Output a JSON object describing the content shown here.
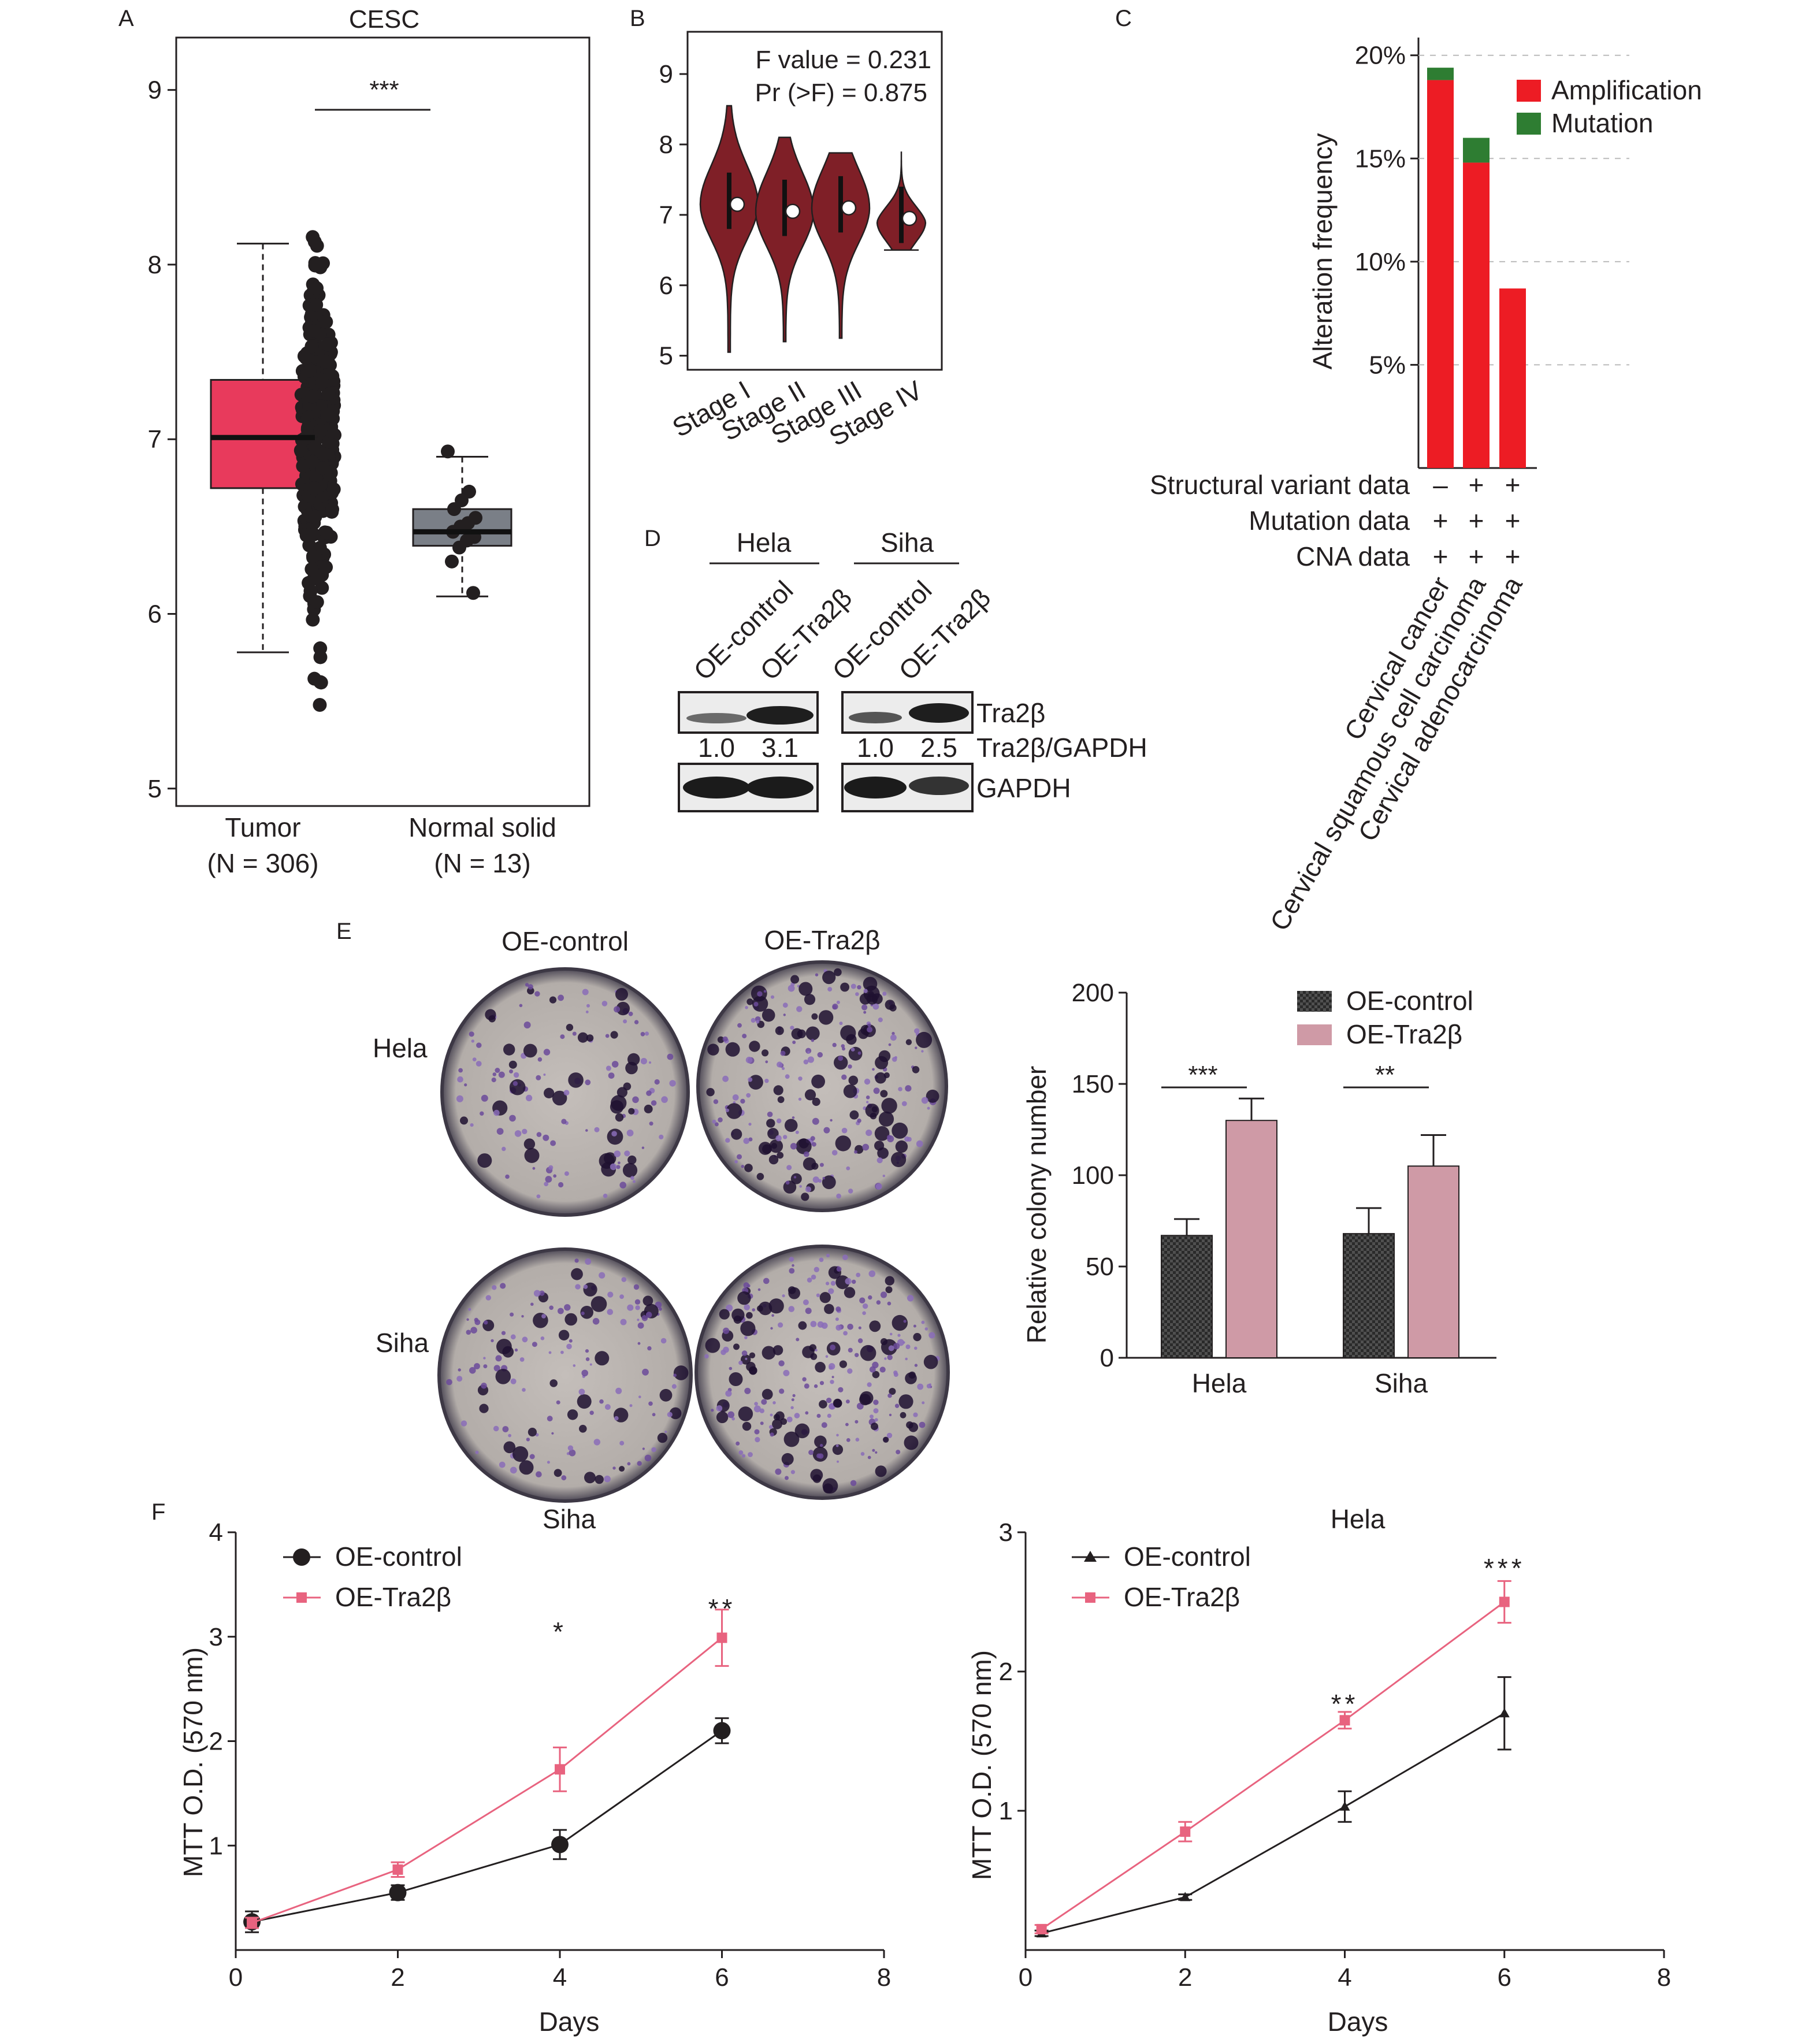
{
  "colors": {
    "tumor": "#e83a5c",
    "normal": "#7a7f87",
    "dot": "#231f20",
    "violin": "#7f1f27",
    "amplification": "#ed1c24",
    "mutation": "#2e7d32",
    "ctrl_bar": "#3a3a3a",
    "tra2b_bar": "#cf9aa6",
    "ctrl_line": "#231f20",
    "tra2b_line": "#e8637f",
    "plate": "#b7b1ad",
    "stain": "#4b2a6e"
  },
  "panels": {
    "A": "A",
    "B": "B",
    "C": "C",
    "D": "D",
    "E": "E",
    "F": "F"
  },
  "chart_data": [
    {
      "id": "A",
      "type": "box",
      "title": "CESC",
      "ylim": [
        4.9,
        9.3
      ],
      "yticks": [
        5,
        6,
        7,
        8,
        9
      ],
      "groups": [
        {
          "name": "Tumor",
          "n_label": "(N = 306)",
          "q1": 6.72,
          "median": 7.01,
          "q3": 7.34,
          "whisker_low": 5.78,
          "whisker_high": 8.12
        },
        {
          "name": "Normal solid",
          "n_label": "(N = 13)",
          "q1": 6.39,
          "median": 6.47,
          "q3": 6.6,
          "whisker_low": 6.1,
          "whisker_high": 6.9
        }
      ],
      "normal_points": [
        6.93,
        6.7,
        6.65,
        6.6,
        6.55,
        6.52,
        6.5,
        6.47,
        6.44,
        6.42,
        6.38,
        6.3,
        6.12
      ],
      "significance": "***"
    },
    {
      "id": "B",
      "type": "violin",
      "ylim": [
        4.8,
        9.6
      ],
      "yticks": [
        5,
        6,
        7,
        8,
        9
      ],
      "categories": [
        "Stage I",
        "Stage II",
        "Stage III",
        "Stage IV"
      ],
      "ranges": [
        [
          5.05,
          8.55
        ],
        [
          5.2,
          8.1
        ],
        [
          5.25,
          7.88
        ],
        [
          6.5,
          7.9
        ]
      ],
      "medians": [
        7.15,
        7.05,
        7.1,
        6.95
      ],
      "annotation_f": "F value = 0.231",
      "annotation_p": "Pr (>F) = 0.875"
    },
    {
      "id": "C",
      "type": "bar",
      "stacked": true,
      "ylabel": "Alteration frequency",
      "ylim": [
        0,
        21
      ],
      "yticks": [
        "5%",
        "10%",
        "15%",
        "20%"
      ],
      "ytick_values": [
        5,
        10,
        15,
        20
      ],
      "categories": [
        "Cervical cancer",
        "Cervical squamous cell carcinoma",
        "Cervical adenocarcinoma"
      ],
      "series": [
        {
          "name": "Amplification",
          "values": [
            18.8,
            14.8,
            8.7
          ]
        },
        {
          "name": "Mutation",
          "values": [
            0.6,
            1.2,
            0
          ]
        }
      ],
      "data_rows": [
        {
          "label": "Structural variant data",
          "marks": [
            "–",
            "+",
            "+"
          ]
        },
        {
          "label": "Mutation data",
          "marks": [
            "+",
            "+",
            "+"
          ]
        },
        {
          "label": "CNA data",
          "marks": [
            "+",
            "+",
            "+"
          ]
        }
      ]
    },
    {
      "id": "E",
      "type": "bar",
      "ylabel": "Relative colony number",
      "ylim": [
        0,
        200
      ],
      "yticks": [
        0,
        50,
        100,
        150,
        200
      ],
      "categories": [
        "Hela",
        "Siha"
      ],
      "series": [
        {
          "name": "OE-control",
          "values": [
            67,
            68
          ],
          "errors": [
            9,
            14
          ]
        },
        {
          "name": "OE-Tra2β",
          "values": [
            130,
            105
          ],
          "errors": [
            12,
            17
          ]
        }
      ],
      "significance": [
        "***",
        "**"
      ]
    },
    {
      "id": "F1",
      "type": "line",
      "title": "Siha",
      "xlabel": "Days",
      "ylabel": "MTT O.D. (570 nm)",
      "xlim": [
        0,
        8
      ],
      "xticks": [
        0,
        2,
        4,
        6,
        8
      ],
      "ylim": [
        0,
        4
      ],
      "yticks": [
        1,
        2,
        3,
        4
      ],
      "x": [
        0.2,
        2,
        4,
        6
      ],
      "series": [
        {
          "name": "OE-control",
          "values": [
            0.27,
            0.55,
            1.01,
            2.1
          ],
          "errors": [
            0.1,
            0.07,
            0.14,
            0.12
          ]
        },
        {
          "name": "OE-Tra2β",
          "values": [
            0.26,
            0.77,
            1.73,
            2.99
          ],
          "errors": [
            0.05,
            0.07,
            0.21,
            0.27
          ]
        }
      ],
      "significance": {
        "x": [
          4,
          6
        ],
        "labels": [
          "*",
          "**"
        ]
      }
    },
    {
      "id": "F2",
      "type": "line",
      "title": "Hela",
      "xlabel": "Days",
      "ylabel": "MTT O.D. (570 nm)",
      "xlim": [
        0,
        8
      ],
      "xticks": [
        0,
        2,
        4,
        6,
        8
      ],
      "ylim": [
        0,
        3
      ],
      "yticks": [
        1,
        2,
        3
      ],
      "x": [
        0.2,
        2,
        4,
        6
      ],
      "series": [
        {
          "name": "OE-control",
          "values": [
            0.12,
            0.38,
            1.03,
            1.7
          ],
          "errors": [
            0.02,
            0.02,
            0.11,
            0.26
          ]
        },
        {
          "name": "OE-Tra2β",
          "values": [
            0.15,
            0.85,
            1.65,
            2.5
          ],
          "errors": [
            0.03,
            0.07,
            0.06,
            0.15
          ]
        }
      ],
      "significance": {
        "x": [
          4,
          6
        ],
        "labels": [
          "**",
          "***"
        ]
      }
    }
  ],
  "western_blot": {
    "cell_lines": [
      "Hela",
      "Siha"
    ],
    "lanes": [
      "OE-control",
      "OE-Tra2β",
      "OE-control",
      "OE-Tra2β"
    ],
    "bands": [
      "Tra2β",
      "GAPDH"
    ],
    "ratio_label": "Tra2β/GAPDH",
    "ratios": [
      "1.0",
      "3.1",
      "1.0",
      "2.5"
    ]
  },
  "colony_assay": {
    "columns": [
      "OE-control",
      "OE-Tra2β"
    ],
    "rows": [
      "Hela",
      "Siha"
    ]
  }
}
